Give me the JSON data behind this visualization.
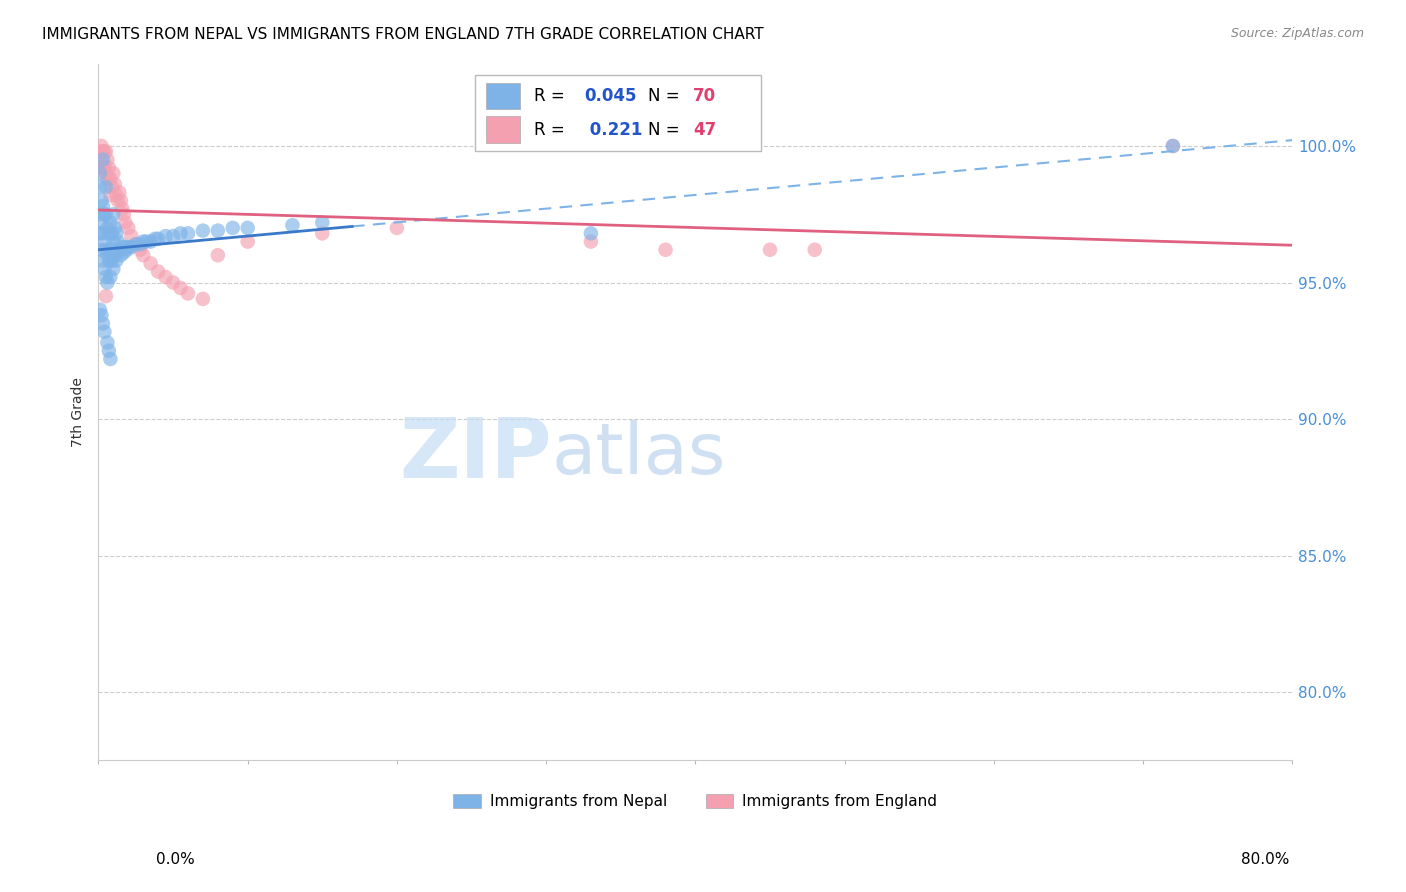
{
  "title": "IMMIGRANTS FROM NEPAL VS IMMIGRANTS FROM ENGLAND 7TH GRADE CORRELATION CHART",
  "source": "Source: ZipAtlas.com",
  "ylabel": "7th Grade",
  "ytick_labels": [
    "80.0%",
    "85.0%",
    "90.0%",
    "95.0%",
    "100.0%"
  ],
  "ytick_values": [
    0.8,
    0.85,
    0.9,
    0.95,
    1.0
  ],
  "xlim": [
    0.0,
    0.8
  ],
  "ylim": [
    0.775,
    1.03
  ],
  "nepal_color": "#7EB3E8",
  "nepal_line_color": "#3A78C9",
  "nepal_line_dash_color": "#7EB3E8",
  "england_color": "#F4A0B0",
  "england_line_color": "#E06080",
  "nepal_R": "0.045",
  "nepal_N": "70",
  "england_R": "0.221",
  "england_N": "47",
  "nepal_scatter_x": [
    0.001,
    0.001,
    0.001,
    0.001,
    0.002,
    0.002,
    0.002,
    0.003,
    0.003,
    0.003,
    0.003,
    0.004,
    0.004,
    0.004,
    0.005,
    0.005,
    0.005,
    0.005,
    0.006,
    0.006,
    0.006,
    0.007,
    0.007,
    0.008,
    0.008,
    0.008,
    0.009,
    0.009,
    0.01,
    0.01,
    0.01,
    0.011,
    0.011,
    0.012,
    0.012,
    0.013,
    0.014,
    0.015,
    0.016,
    0.017,
    0.018,
    0.019,
    0.02,
    0.022,
    0.025,
    0.028,
    0.03,
    0.032,
    0.035,
    0.038,
    0.04,
    0.045,
    0.05,
    0.055,
    0.06,
    0.07,
    0.08,
    0.09,
    0.1,
    0.13,
    0.15,
    0.001,
    0.002,
    0.003,
    0.004,
    0.006,
    0.007,
    0.008,
    0.72,
    0.33
  ],
  "nepal_scatter_y": [
    0.99,
    0.985,
    0.975,
    0.968,
    0.98,
    0.972,
    0.962,
    0.978,
    0.968,
    0.958,
    0.995,
    0.975,
    0.965,
    0.955,
    0.975,
    0.962,
    0.952,
    0.985,
    0.97,
    0.96,
    0.95,
    0.968,
    0.958,
    0.972,
    0.962,
    0.952,
    0.968,
    0.958,
    0.975,
    0.965,
    0.955,
    0.97,
    0.96,
    0.968,
    0.958,
    0.965,
    0.962,
    0.96,
    0.963,
    0.961,
    0.963,
    0.962,
    0.963,
    0.963,
    0.964,
    0.964,
    0.965,
    0.965,
    0.965,
    0.966,
    0.966,
    0.967,
    0.967,
    0.968,
    0.968,
    0.969,
    0.969,
    0.97,
    0.97,
    0.971,
    0.972,
    0.94,
    0.938,
    0.935,
    0.932,
    0.928,
    0.925,
    0.922,
    1.0,
    0.968
  ],
  "england_scatter_x": [
    0.001,
    0.001,
    0.002,
    0.002,
    0.003,
    0.003,
    0.004,
    0.004,
    0.005,
    0.005,
    0.006,
    0.006,
    0.007,
    0.008,
    0.008,
    0.009,
    0.01,
    0.011,
    0.012,
    0.013,
    0.014,
    0.015,
    0.016,
    0.017,
    0.018,
    0.02,
    0.022,
    0.025,
    0.028,
    0.03,
    0.035,
    0.04,
    0.045,
    0.05,
    0.055,
    0.06,
    0.07,
    0.08,
    0.1,
    0.15,
    0.2,
    0.33,
    0.005,
    0.72,
    0.38,
    0.45,
    0.48
  ],
  "england_scatter_y": [
    0.998,
    0.992,
    1.0,
    0.995,
    0.998,
    0.992,
    0.998,
    0.992,
    0.998,
    0.99,
    0.995,
    0.988,
    0.992,
    0.988,
    0.982,
    0.985,
    0.99,
    0.986,
    0.982,
    0.98,
    0.983,
    0.98,
    0.977,
    0.975,
    0.972,
    0.97,
    0.967,
    0.964,
    0.962,
    0.96,
    0.957,
    0.954,
    0.952,
    0.95,
    0.948,
    0.946,
    0.944,
    0.96,
    0.965,
    0.968,
    0.97,
    0.965,
    0.945,
    1.0,
    0.962,
    0.962,
    0.962
  ],
  "legend_label1": "Immigrants from Nepal",
  "legend_label2": "Immigrants from England",
  "nepal_line_x_solid_end": 0.17,
  "watermark_zip_color": "#c5ddf5",
  "watermark_atlas_color": "#a8c8e8"
}
